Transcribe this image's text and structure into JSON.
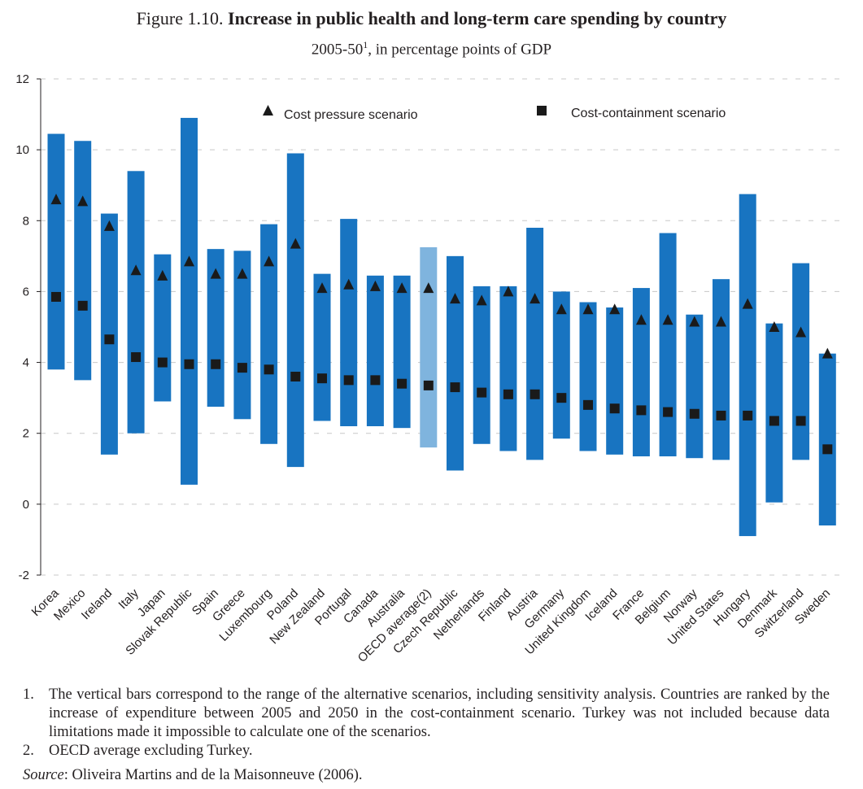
{
  "figure": {
    "label": "Figure 1.10.",
    "title": "Increase in public health and long-term care spending by country",
    "subtitle_main": "2005-50",
    "subtitle_sup": "1",
    "subtitle_rest": ", in percentage points of GDP"
  },
  "chart_data": {
    "type": "range-bar with markers",
    "title": "Increase in public health and long-term care spending by country",
    "ylabel": "percentage points of GDP",
    "ylim": [
      -2,
      12
    ],
    "yticks": [
      "12",
      "10",
      "8",
      "6",
      "4",
      "2",
      "0",
      "-2"
    ],
    "legend": {
      "cost_pressure": "Cost pressure scenario",
      "cost_containment": "Cost-containment scenario"
    },
    "colors": {
      "bar": "#1874c1",
      "bar_highlight": "#7fb4de",
      "marker": "#1a1a1a"
    },
    "categories": [
      "Korea",
      "Mexico",
      "Ireland",
      "Italy",
      "Japan",
      "Slovak Republic",
      "Spain",
      "Greece",
      "Luxembourg",
      "Poland",
      "New Zealand",
      "Portugal",
      "Canada",
      "Australia",
      "OECD average(2)",
      "Czech Republic",
      "Netherlands",
      "Finland",
      "Austria",
      "Germany",
      "United Kingdom",
      "Iceland",
      "France",
      "Belgium",
      "Norway",
      "United States",
      "Hungary",
      "Denmark",
      "Switzerland",
      "Sweden"
    ],
    "range_low": [
      3.8,
      3.5,
      1.4,
      2.0,
      2.9,
      0.55,
      2.75,
      2.4,
      1.7,
      1.05,
      2.35,
      2.2,
      2.2,
      2.15,
      1.6,
      0.95,
      1.7,
      1.5,
      1.25,
      1.85,
      1.5,
      1.4,
      1.35,
      1.35,
      1.3,
      1.25,
      -0.9,
      0.05,
      1.25,
      -0.6
    ],
    "range_high": [
      10.45,
      10.25,
      8.2,
      9.4,
      7.05,
      10.9,
      7.2,
      7.15,
      7.9,
      9.9,
      6.5,
      8.05,
      6.45,
      6.45,
      7.25,
      7.0,
      6.15,
      6.15,
      7.8,
      6.0,
      5.7,
      5.55,
      6.1,
      7.65,
      5.35,
      6.35,
      8.75,
      5.1,
      6.8,
      4.25
    ],
    "cost_pressure": [
      8.6,
      8.55,
      7.85,
      6.6,
      6.45,
      6.85,
      6.5,
      6.5,
      6.85,
      7.35,
      6.1,
      6.2,
      6.15,
      6.1,
      6.1,
      5.8,
      5.75,
      6.0,
      5.8,
      5.5,
      5.5,
      5.5,
      5.2,
      5.2,
      5.15,
      5.15,
      5.65,
      5.0,
      4.85,
      4.25
    ],
    "cost_containment": [
      5.85,
      5.6,
      4.65,
      4.15,
      4.0,
      3.95,
      3.95,
      3.85,
      3.8,
      3.6,
      3.55,
      3.5,
      3.5,
      3.4,
      3.35,
      3.3,
      3.15,
      3.1,
      3.1,
      3.0,
      2.8,
      2.7,
      2.65,
      2.6,
      2.55,
      2.5,
      2.5,
      2.35,
      2.35,
      1.55
    ],
    "highlight_category": "OECD average(2)"
  },
  "notes": [
    {
      "num": "1.",
      "text": "The vertical bars correspond to the range of the alternative scenarios, including sensitivity analysis. Countries are ranked by the increase of expenditure between 2005 and 2050 in the cost-containment scenario. Turkey was not included because data limitations made it impossible to calculate one of the scenarios."
    },
    {
      "num": "2.",
      "text": "OECD average excluding Turkey."
    }
  ],
  "source": {
    "label": "Source",
    "text": ": Oliveira Martins and de la Maisonneuve (2006)."
  }
}
